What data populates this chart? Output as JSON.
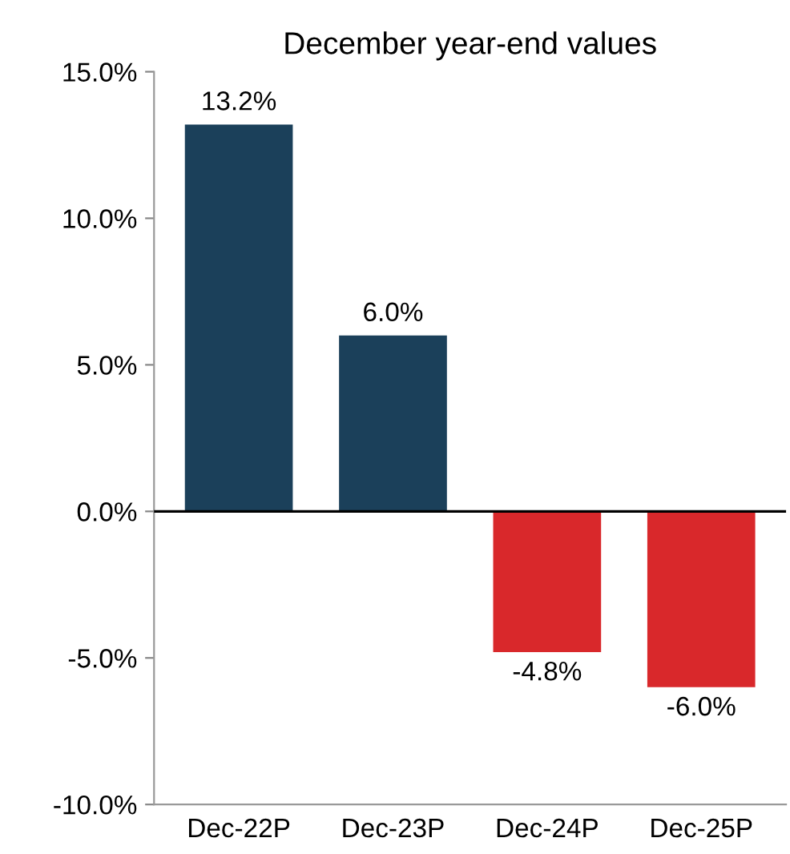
{
  "chart_data": {
    "type": "bar",
    "title": "December year-end values",
    "categories": [
      "Dec-22P",
      "Dec-23P",
      "Dec-24P",
      "Dec-25P"
    ],
    "values": [
      13.2,
      6.0,
      -4.8,
      -6.0
    ],
    "colors": [
      "#1b405a",
      "#1b405a",
      "#d9282b",
      "#d9282b"
    ],
    "value_labels": [
      "13.2%",
      "6.0%",
      "-4.8%",
      "-6.0%"
    ],
    "ylim": [
      -10,
      15
    ],
    "yticks": [
      {
        "value": -10,
        "label": "-10.0%"
      },
      {
        "value": -5,
        "label": "-5.0%"
      },
      {
        "value": 0,
        "label": "0.0%"
      },
      {
        "value": 5,
        "label": "5.0%"
      },
      {
        "value": 10,
        "label": "10.0%"
      },
      {
        "value": 15,
        "label": "15.0%"
      }
    ],
    "ref_lines": [
      {
        "axis": "y",
        "value": 0,
        "color": "#000000"
      }
    ],
    "grid": false,
    "legend": false
  }
}
